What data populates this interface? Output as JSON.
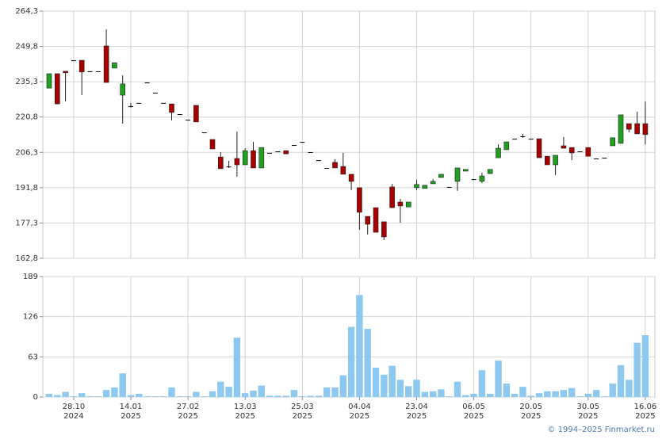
{
  "chart_data": [
    {
      "type": "candlestick",
      "up_color": "#20a020",
      "down_color": "#a80000",
      "flat_color": "#000000",
      "ylim": [
        162.8,
        264.3
      ],
      "yticks": [
        {
          "value": 162.8,
          "label": "162,8"
        },
        {
          "value": 177.3,
          "label": "177,3"
        },
        {
          "value": 191.8,
          "label": "191,8"
        },
        {
          "value": 206.3,
          "label": "206,3"
        },
        {
          "value": 220.8,
          "label": "220,8"
        },
        {
          "value": 235.3,
          "label": "235,3"
        },
        {
          "value": 249.8,
          "label": "249,8"
        },
        {
          "value": 264.3,
          "label": "264,3"
        }
      ],
      "grid": true,
      "open": [
        232.7,
        238.6,
        239.6,
        244.1,
        244.1,
        239.6,
        239.6,
        250.0,
        240.9,
        229.8,
        225.3,
        226.6,
        235.0,
        230.8,
        226.6,
        226.2,
        222.0,
        219.7,
        225.6,
        214.5,
        211.6,
        204.4,
        200.5,
        203.8,
        201.2,
        207.0,
        199.9,
        206.1,
        206.7,
        207.0,
        209.3,
        210.6,
        206.4,
        203.1,
        199.9,
        202.2,
        200.5,
        197.3,
        191.8,
        180.0,
        183.6,
        177.8,
        192.1,
        185.9,
        183.9,
        191.8,
        191.5,
        193.4,
        196.0,
        192.1,
        194.4,
        198.6,
        195.3,
        194.4,
        197.6,
        204.1,
        207.4,
        211.9,
        212.9,
        211.9,
        211.9,
        204.7,
        201.2,
        209.0,
        208.3,
        206.7,
        208.3,
        203.8,
        204.1,
        209.0,
        210.0,
        218.1,
        218.1,
        218.1
      ],
      "high": [
        238.6,
        238.6,
        239.6,
        244.1,
        244.1,
        239.6,
        239.6,
        256.8,
        243.1,
        237.9,
        226.6,
        226.6,
        235.0,
        230.8,
        226.6,
        226.2,
        222.0,
        219.7,
        225.6,
        214.5,
        211.6,
        206.4,
        202.8,
        214.8,
        208.0,
        210.6,
        208.3,
        206.1,
        206.7,
        207.0,
        209.3,
        210.6,
        206.4,
        203.1,
        199.9,
        203.5,
        206.1,
        197.3,
        191.8,
        180.0,
        183.6,
        177.8,
        193.4,
        187.2,
        185.9,
        195.1,
        192.8,
        195.4,
        197.3,
        192.1,
        199.9,
        199.3,
        195.3,
        197.9,
        199.3,
        209.6,
        210.6,
        211.9,
        213.9,
        211.9,
        211.9,
        204.7,
        205.1,
        212.6,
        208.3,
        206.7,
        208.3,
        203.8,
        204.1,
        212.3,
        221.7,
        218.1,
        223.0,
        227.2
      ],
      "low": [
        232.7,
        226.2,
        227.2,
        244.1,
        229.8,
        239.6,
        239.6,
        235.0,
        240.9,
        218.1,
        224.7,
        226.6,
        235.0,
        230.8,
        226.6,
        219.4,
        222.0,
        219.7,
        218.8,
        214.5,
        207.7,
        199.6,
        199.9,
        196.3,
        201.2,
        199.9,
        199.9,
        206.1,
        206.7,
        205.7,
        209.3,
        210.6,
        206.4,
        203.1,
        199.9,
        199.9,
        197.3,
        190.8,
        174.5,
        172.6,
        173.5,
        170.3,
        183.6,
        177.4,
        183.9,
        190.8,
        191.5,
        193.4,
        196.0,
        192.1,
        190.5,
        198.6,
        195.3,
        193.7,
        197.6,
        204.1,
        207.4,
        211.9,
        212.3,
        211.9,
        204.1,
        201.2,
        197.0,
        208.0,
        203.1,
        206.7,
        204.7,
        203.8,
        204.1,
        209.0,
        210.0,
        214.5,
        213.9,
        209.6
      ],
      "close": [
        238.6,
        226.2,
        239.0,
        244.1,
        239.3,
        239.6,
        239.6,
        235.0,
        243.1,
        234.4,
        225.3,
        226.6,
        235.0,
        230.8,
        226.6,
        222.7,
        222.0,
        219.7,
        218.8,
        214.5,
        207.7,
        199.6,
        200.5,
        201.2,
        207.0,
        199.9,
        208.3,
        206.1,
        206.7,
        205.7,
        209.3,
        210.6,
        206.4,
        203.1,
        199.9,
        199.9,
        197.3,
        194.4,
        181.7,
        176.8,
        173.5,
        171.6,
        183.6,
        184.3,
        185.9,
        193.1,
        192.8,
        194.4,
        197.3,
        192.1,
        199.9,
        199.3,
        195.3,
        196.6,
        199.3,
        208.0,
        210.6,
        211.9,
        212.9,
        211.9,
        204.1,
        201.2,
        205.1,
        208.0,
        206.1,
        206.7,
        204.7,
        203.8,
        204.1,
        212.3,
        221.7,
        215.8,
        213.9,
        213.6
      ]
    },
    {
      "type": "bar",
      "color": "#8cc8f0",
      "ylim": [
        0,
        189
      ],
      "yticks": [
        0,
        63,
        126,
        189
      ],
      "grid": true,
      "categories": [
        null,
        null,
        null,
        "28.10",
        null,
        null,
        null,
        null,
        null,
        null,
        "14.01",
        null,
        null,
        null,
        null,
        null,
        null,
        "27.02",
        null,
        null,
        null,
        null,
        null,
        null,
        "13.03",
        null,
        null,
        null,
        null,
        null,
        null,
        "25.03",
        null,
        null,
        null,
        null,
        null,
        null,
        "04.04",
        null,
        null,
        null,
        null,
        null,
        null,
        "23.04",
        null,
        null,
        null,
        null,
        null,
        null,
        "06.05",
        null,
        null,
        null,
        null,
        null,
        null,
        "20.05",
        null,
        null,
        null,
        null,
        null,
        null,
        "30.05",
        null,
        null,
        null,
        null,
        null,
        null,
        "16.06"
      ],
      "category_years": [
        null,
        null,
        null,
        "2024",
        null,
        null,
        null,
        null,
        null,
        null,
        "2025",
        null,
        null,
        null,
        null,
        null,
        null,
        "2025",
        null,
        null,
        null,
        null,
        null,
        null,
        "2025",
        null,
        null,
        null,
        null,
        null,
        null,
        "2025",
        null,
        null,
        null,
        null,
        null,
        null,
        "2025",
        null,
        null,
        null,
        null,
        null,
        null,
        "2025",
        null,
        null,
        null,
        null,
        null,
        null,
        "2025",
        null,
        null,
        null,
        null,
        null,
        null,
        "2025",
        null,
        null,
        null,
        null,
        null,
        null,
        "2025",
        null,
        null,
        null,
        null,
        null,
        null,
        "2025"
      ],
      "values": [
        5,
        3,
        8,
        1,
        6,
        1,
        1,
        11,
        15,
        37,
        3,
        5,
        1,
        1,
        1,
        15,
        1,
        1,
        8,
        1,
        9,
        24,
        16,
        93,
        6,
        10,
        18,
        2,
        2,
        2,
        11,
        1,
        2,
        2,
        15,
        15,
        34,
        110,
        160,
        107,
        46,
        35,
        49,
        27,
        17,
        27,
        8,
        9,
        12,
        1,
        24,
        3,
        5,
        42,
        5,
        57,
        21,
        5,
        16,
        2,
        6,
        9,
        9,
        11,
        14,
        1,
        5,
        11,
        1,
        21,
        50,
        27,
        85,
        97
      ]
    }
  ],
  "footer": "© 1994–2025 Finmarket.ru"
}
